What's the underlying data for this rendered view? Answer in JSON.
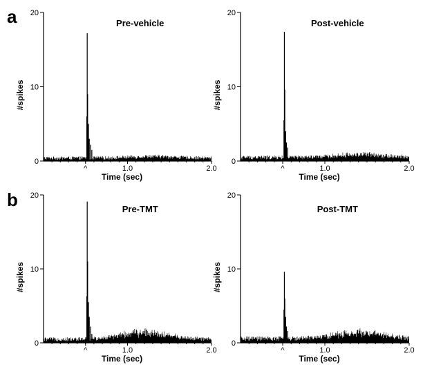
{
  "figure": {
    "row_labels": [
      "a",
      "b"
    ]
  },
  "chart_data": [
    {
      "type": "bar",
      "title": "Pre-vehicle",
      "xlabel": "Time (sec)",
      "ylabel": "#spikes",
      "xlim": [
        0,
        2.0
      ],
      "ylim": [
        0,
        20
      ],
      "xticks": [
        {
          "value": 0.5,
          "label": "^"
        },
        {
          "value": 1.0,
          "label": "1.0"
        },
        {
          "value": 2.0,
          "label": "2.0"
        }
      ],
      "yticks": [
        {
          "value": 0,
          "label": "0"
        },
        {
          "value": 10,
          "label": "10"
        },
        {
          "value": 20,
          "label": "20"
        }
      ],
      "baseline": 0.5,
      "peaks": [
        {
          "x": 0.52,
          "y": 17.2
        },
        {
          "x": 0.525,
          "y": 9
        },
        {
          "x": 0.515,
          "y": 6
        },
        {
          "x": 0.535,
          "y": 5
        },
        {
          "x": 0.545,
          "y": 3
        },
        {
          "x": 0.56,
          "y": 2.2
        },
        {
          "x": 0.575,
          "y": 1.5
        }
      ],
      "late_bump": {
        "center": 1.3,
        "height": 0.2
      }
    },
    {
      "type": "bar",
      "title": "Post-vehicle",
      "xlabel": "Time (sec)",
      "ylabel": "#spikes",
      "xlim": [
        0,
        2.0
      ],
      "ylim": [
        0,
        20
      ],
      "xticks": [
        {
          "value": 0.5,
          "label": "^"
        },
        {
          "value": 1.0,
          "label": "1.0"
        },
        {
          "value": 2.0,
          "label": "2.0"
        }
      ],
      "yticks": [
        {
          "value": 0,
          "label": "0"
        },
        {
          "value": 10,
          "label": "10"
        },
        {
          "value": 20,
          "label": "20"
        }
      ],
      "baseline": 0.6,
      "peaks": [
        {
          "x": 0.52,
          "y": 17.4
        },
        {
          "x": 0.525,
          "y": 9.6
        },
        {
          "x": 0.515,
          "y": 5.5
        },
        {
          "x": 0.535,
          "y": 4
        },
        {
          "x": 0.545,
          "y": 2.5
        },
        {
          "x": 0.56,
          "y": 1.8
        }
      ],
      "late_bump": {
        "center": 1.45,
        "height": 0.4
      }
    },
    {
      "type": "bar",
      "title": "Pre-TMT",
      "xlabel": "Time (sec)",
      "ylabel": "#spikes",
      "xlim": [
        0,
        2.0
      ],
      "ylim": [
        0,
        20
      ],
      "xticks": [
        {
          "value": 0.5,
          "label": "^"
        },
        {
          "value": 1.0,
          "label": "1.0"
        },
        {
          "value": 2.0,
          "label": "2.0"
        }
      ],
      "yticks": [
        {
          "value": 0,
          "label": "0"
        },
        {
          "value": 10,
          "label": "10"
        },
        {
          "value": 20,
          "label": "20"
        }
      ],
      "baseline": 0.6,
      "peaks": [
        {
          "x": 0.52,
          "y": 19.1
        },
        {
          "x": 0.525,
          "y": 11
        },
        {
          "x": 0.515,
          "y": 6.3
        },
        {
          "x": 0.535,
          "y": 5.5
        },
        {
          "x": 0.545,
          "y": 3.5
        },
        {
          "x": 0.56,
          "y": 2.2
        },
        {
          "x": 0.575,
          "y": 1.2
        }
      ],
      "late_bump": {
        "center": 1.2,
        "height": 0.9
      }
    },
    {
      "type": "bar",
      "title": "Post-TMT",
      "xlabel": "Time (sec)",
      "ylabel": "#spikes",
      "xlim": [
        0,
        2.0
      ],
      "ylim": [
        0,
        20
      ],
      "xticks": [
        {
          "value": 0.5,
          "label": "^"
        },
        {
          "value": 1.0,
          "label": "1.0"
        },
        {
          "value": 2.0,
          "label": "2.0"
        }
      ],
      "yticks": [
        {
          "value": 0,
          "label": "0"
        },
        {
          "value": 10,
          "label": "10"
        },
        {
          "value": 20,
          "label": "20"
        }
      ],
      "baseline": 0.7,
      "peaks": [
        {
          "x": 0.52,
          "y": 9.6
        },
        {
          "x": 0.525,
          "y": 6
        },
        {
          "x": 0.515,
          "y": 4.5
        },
        {
          "x": 0.535,
          "y": 3.5
        },
        {
          "x": 0.545,
          "y": 2.2
        },
        {
          "x": 0.56,
          "y": 1.6
        }
      ],
      "late_bump": {
        "center": 1.4,
        "height": 0.8
      }
    }
  ]
}
